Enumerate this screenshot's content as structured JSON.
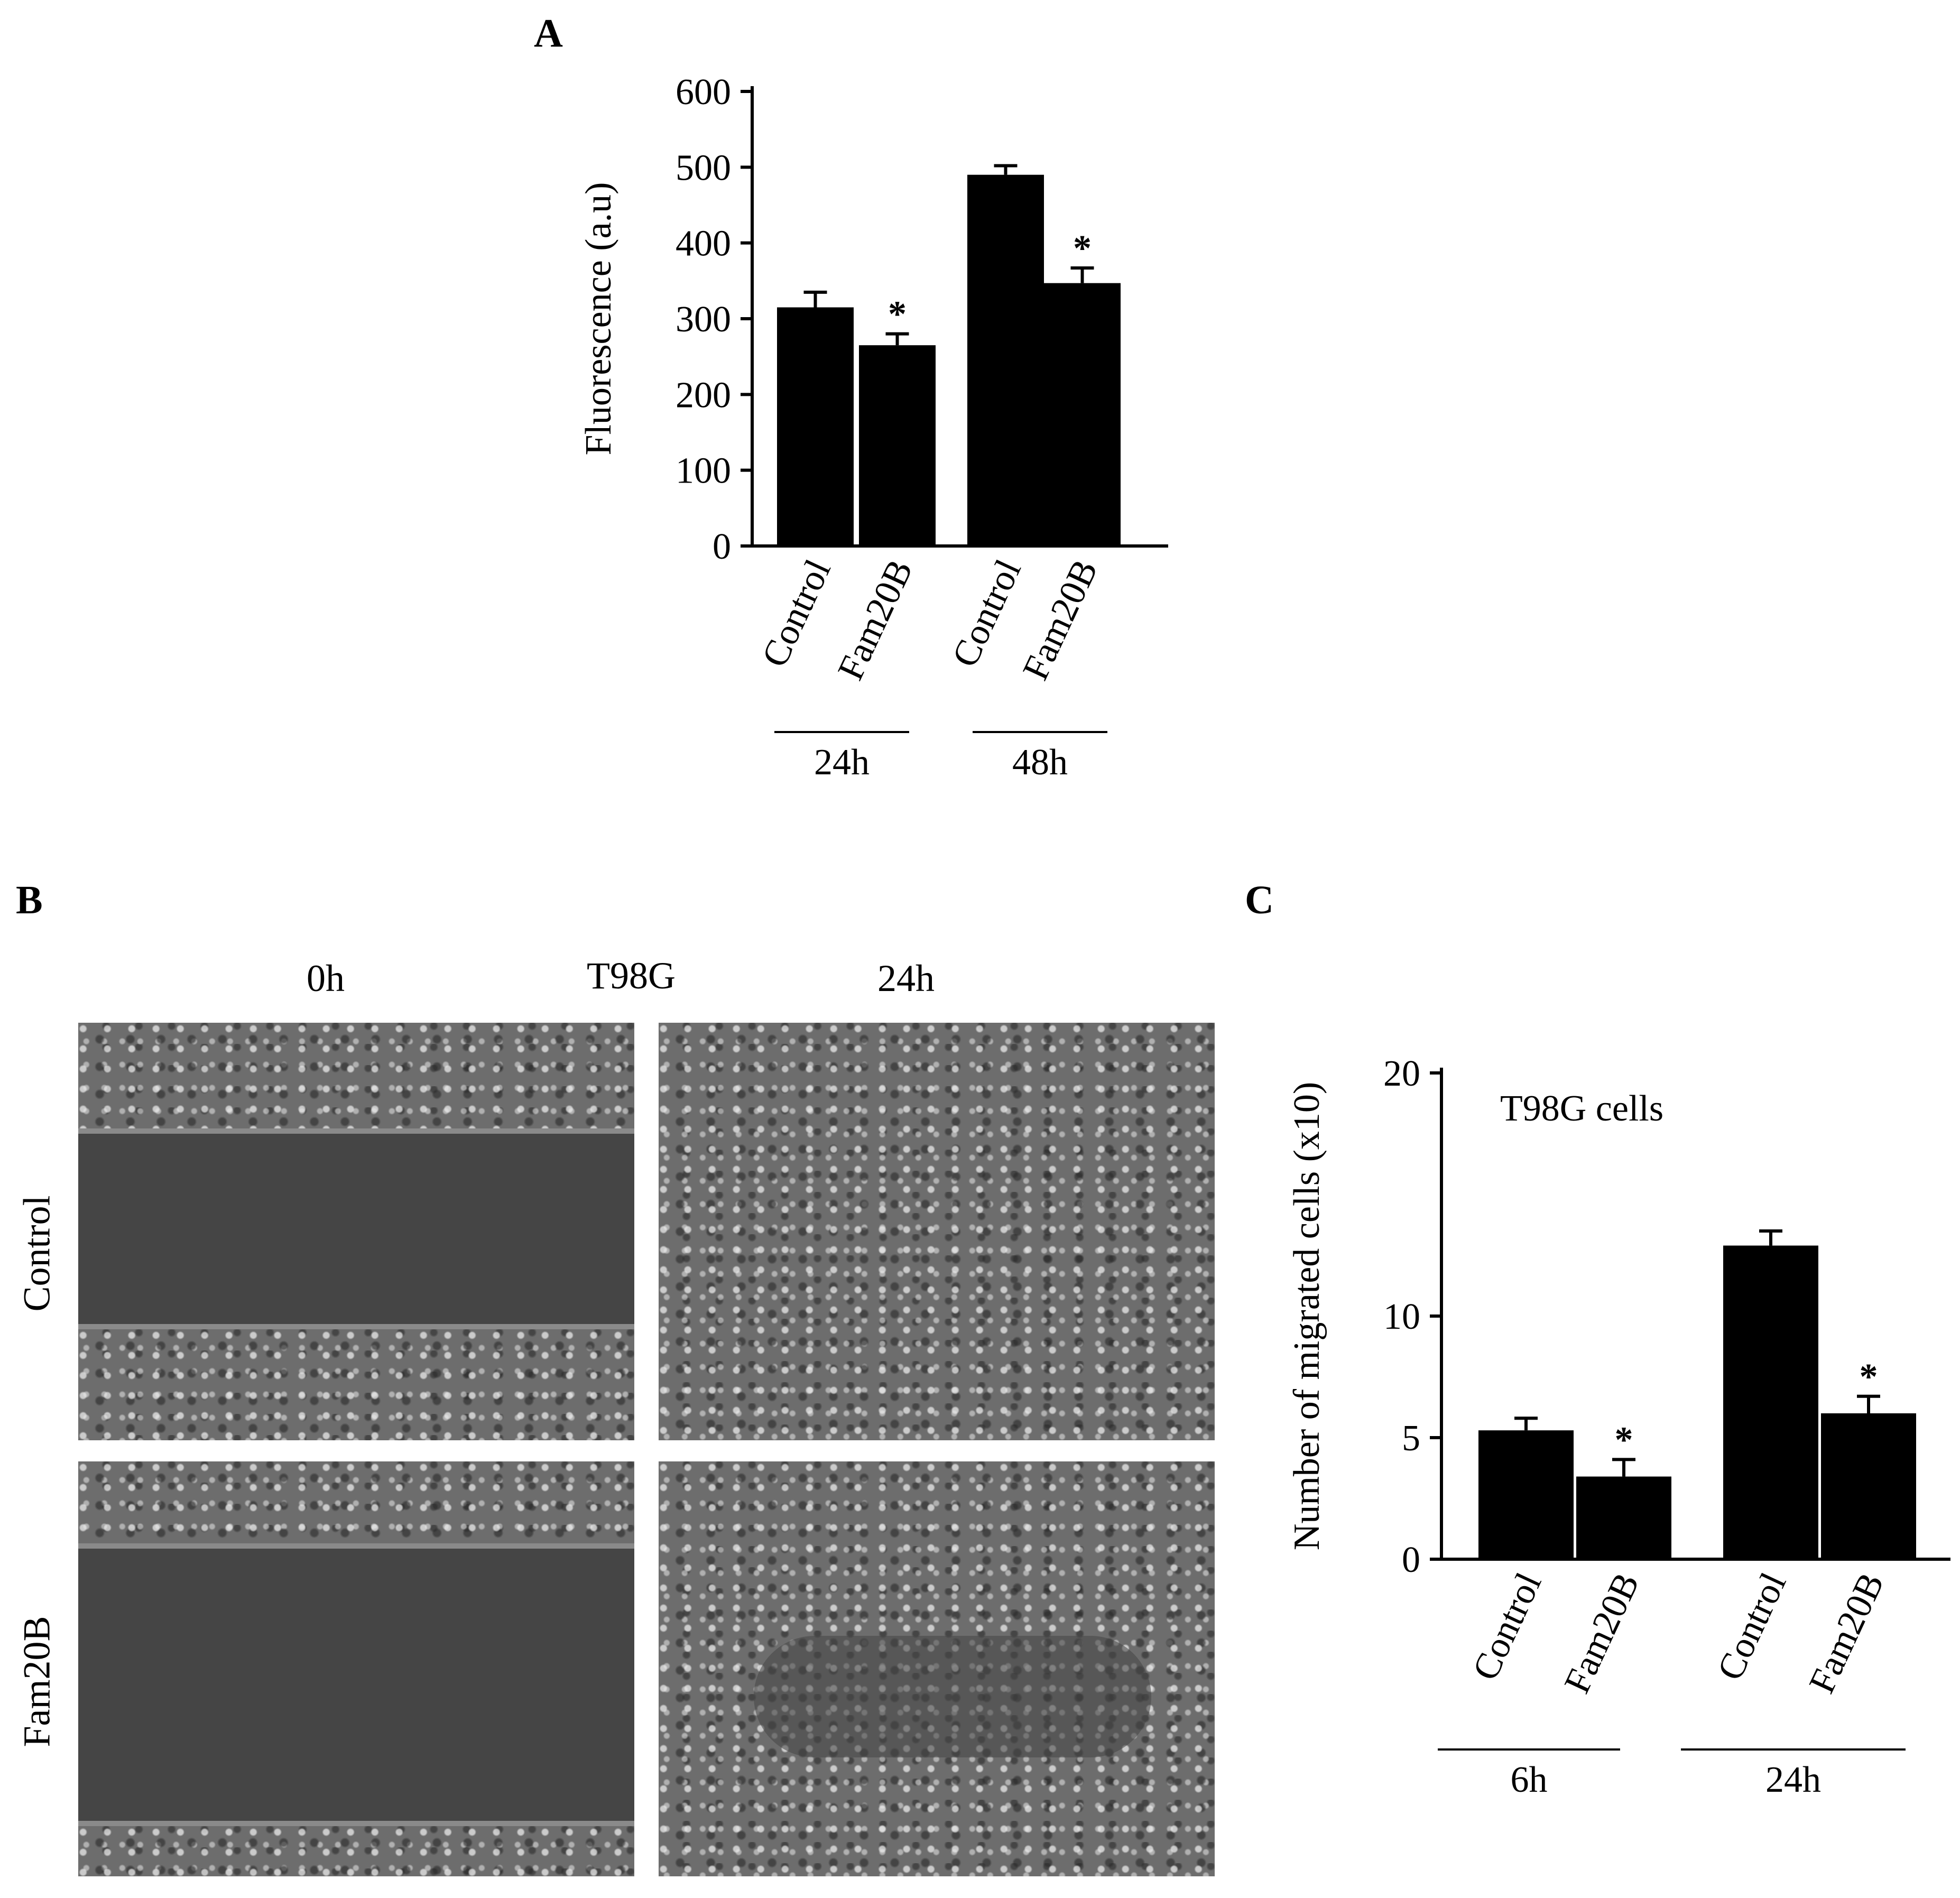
{
  "panels": {
    "A": {
      "label": "A"
    },
    "B": {
      "label": "B",
      "col_left": "0h",
      "col_center": "T98G",
      "col_right": "24h",
      "row_top": "Control",
      "row_bottom": "Fam20B"
    },
    "C": {
      "label": "C"
    }
  },
  "chart_data": [
    {
      "type": "bar",
      "panel": "A",
      "ylabel": "Fluorescence (a.u)",
      "xlabel": "",
      "ylim": [
        0,
        600
      ],
      "yticks": [
        0,
        100,
        200,
        300,
        400,
        500,
        600
      ],
      "categories": [
        "Control",
        "Fam20B",
        "Control",
        "Fam20B"
      ],
      "groups": [
        "24h",
        "24h",
        "48h",
        "48h"
      ],
      "group_labels": [
        "24h",
        "48h"
      ],
      "values": [
        315,
        265,
        490,
        347
      ],
      "errors": [
        20,
        15,
        12,
        20
      ],
      "significance": [
        "",
        "*",
        "",
        "*"
      ],
      "grid": false,
      "bar_color": "#000000"
    },
    {
      "type": "bar",
      "panel": "C",
      "ylabel": "Number of migrated cells (x10)",
      "xlabel": "",
      "annotation": "T98G cells",
      "ylim": [
        0,
        20
      ],
      "yticks": [
        0,
        5,
        10,
        20
      ],
      "ytick_labels": [
        "0",
        "5",
        "10",
        "20"
      ],
      "categories": [
        "Control",
        "Fam20B",
        "Control",
        "Fam20B"
      ],
      "groups": [
        "6h",
        "6h",
        "24h",
        "24h"
      ],
      "group_labels": [
        "6h",
        "24h"
      ],
      "values": [
        5.3,
        3.4,
        12.9,
        6.0
      ],
      "errors": [
        0.5,
        0.7,
        0.6,
        0.7
      ],
      "significance": [
        "",
        "*",
        "",
        "*"
      ],
      "grid": false,
      "bar_color": "#000000"
    }
  ]
}
